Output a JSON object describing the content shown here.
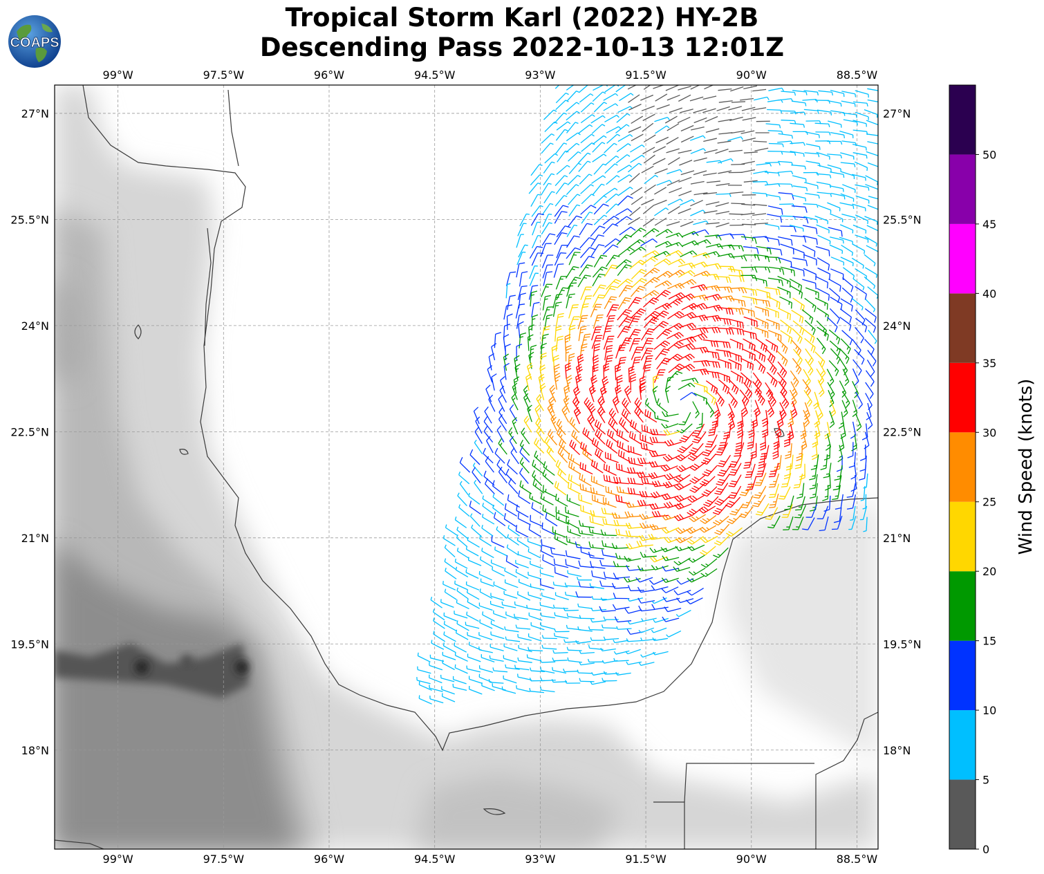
{
  "title": {
    "line1": "Tropical Storm Karl (2022) HY-2B",
    "line2": "Descending Pass 2022-10-13 12:01Z"
  },
  "logo": {
    "text": "COAPS",
    "icon": "globe-logo-icon"
  },
  "map": {
    "lon_range": [
      -99.9,
      -88.2
    ],
    "lat_range": [
      16.6,
      27.4
    ],
    "lon_ticks": [
      -99.0,
      -97.5,
      -96.0,
      -94.5,
      -93.0,
      -91.5,
      -90.0,
      -88.5
    ],
    "lon_tick_labels": [
      "99°W",
      "97.5°W",
      "96°W",
      "94.5°W",
      "93°W",
      "91.5°W",
      "90°W",
      "88.5°W"
    ],
    "lat_ticks": [
      27.0,
      25.5,
      24.0,
      22.5,
      21.0,
      19.5,
      18.0
    ],
    "lat_tick_labels": [
      "27°N",
      "25.5°N",
      "24°N",
      "22.5°N",
      "21°N",
      "19.5°N",
      "18°N"
    ],
    "gridlines": true,
    "background": "grayscale topography"
  },
  "colorbar": {
    "label": "Wind Speed (knots)",
    "ticks": [
      0,
      5,
      10,
      15,
      20,
      25,
      30,
      35,
      40,
      45,
      50
    ],
    "tick_labels": [
      "0",
      "5",
      "10",
      "15",
      "20",
      "25",
      "30",
      "35",
      "40",
      "45",
      "50"
    ],
    "range": [
      0,
      55
    ],
    "bins": [
      {
        "from": 0,
        "to": 5,
        "color": "#595959"
      },
      {
        "from": 5,
        "to": 10,
        "color": "#00bfff"
      },
      {
        "from": 10,
        "to": 15,
        "color": "#0033ff"
      },
      {
        "from": 15,
        "to": 20,
        "color": "#009900"
      },
      {
        "from": 20,
        "to": 25,
        "color": "#ffd700"
      },
      {
        "from": 25,
        "to": 30,
        "color": "#ff8c00"
      },
      {
        "from": 30,
        "to": 35,
        "color": "#ff0000"
      },
      {
        "from": 35,
        "to": 40,
        "color": "#7f3a24"
      },
      {
        "from": 40,
        "to": 45,
        "color": "#ff00ff"
      },
      {
        "from": 45,
        "to": 50,
        "color": "#8800aa"
      },
      {
        "from": 50,
        "to": 55,
        "color": "#2b0050"
      }
    ]
  },
  "storm_center": {
    "lon": -91.0,
    "lat": 22.9
  },
  "swath": {
    "polygon": [
      [
        -94.7,
        18.6
      ],
      [
        -92.9,
        27.4
      ],
      [
        -88.2,
        27.4
      ],
      [
        -88.2,
        21.2
      ],
      [
        -90.0,
        21.3
      ],
      [
        -91.2,
        19.3
      ],
      [
        -92.0,
        18.9
      ]
    ]
  }
}
